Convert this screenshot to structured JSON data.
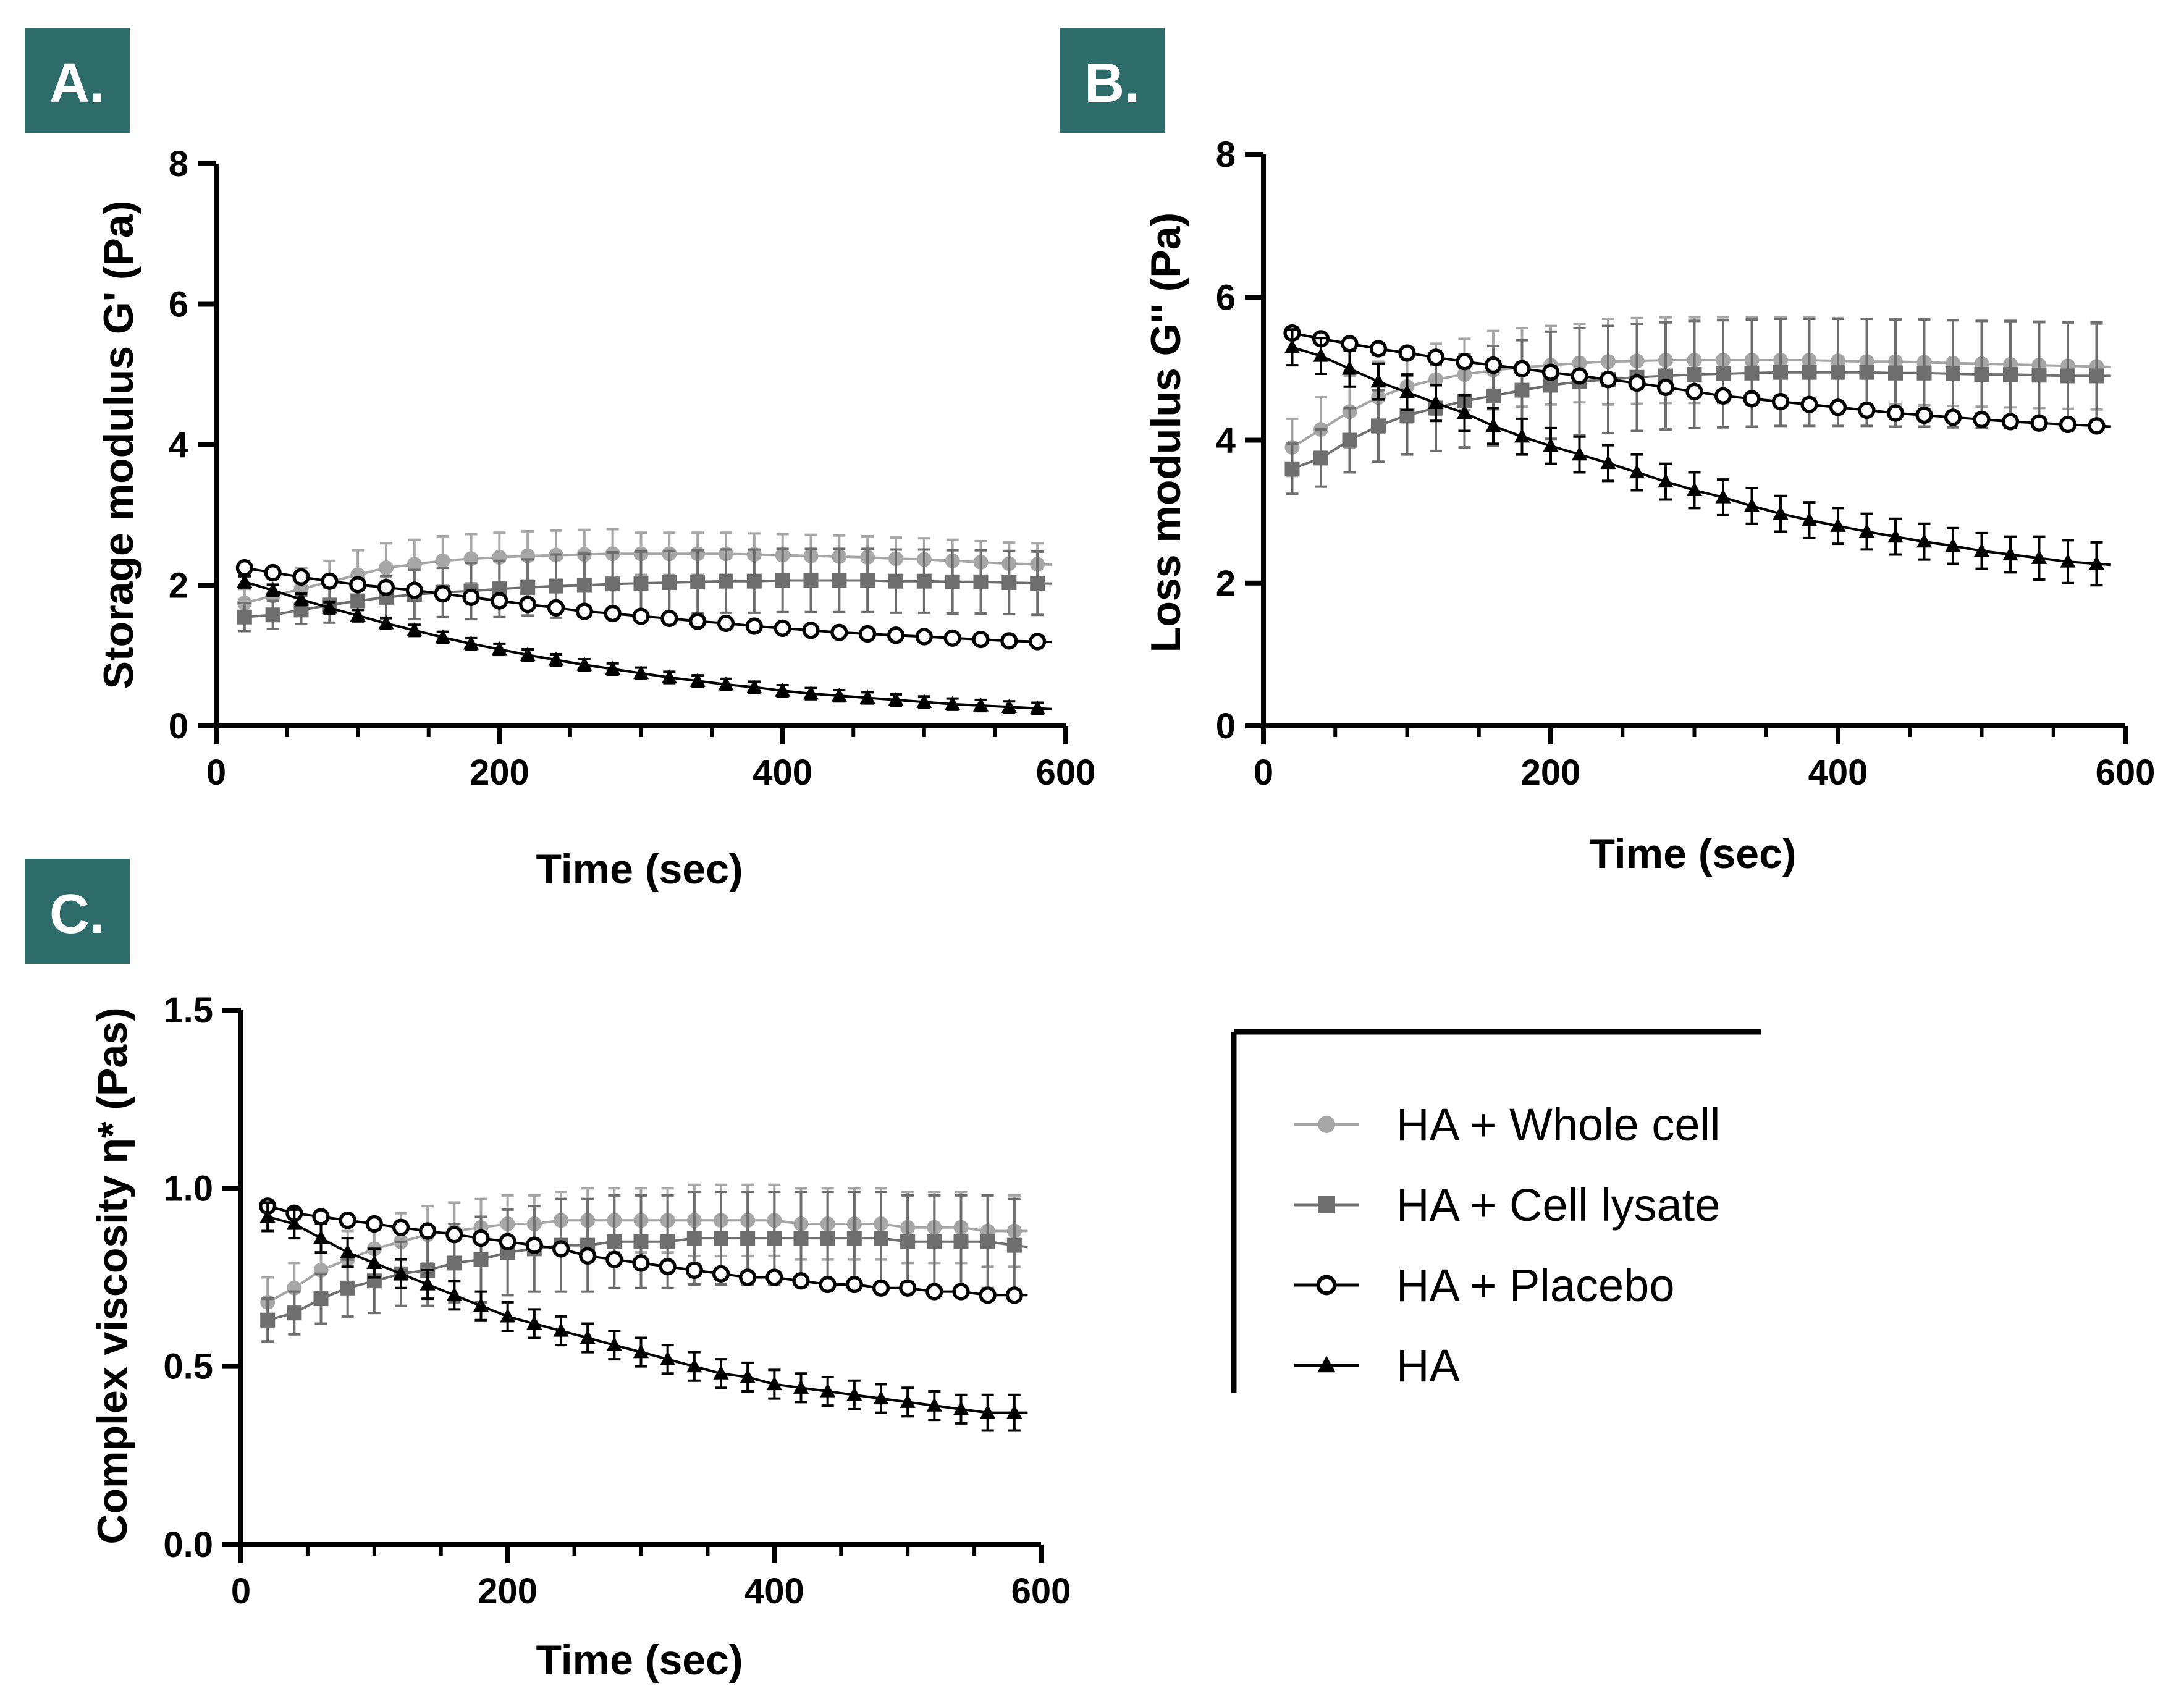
{
  "chart_data": [
    {
      "panel": "A.",
      "type": "line",
      "title": "",
      "xlabel": "Time (sec)",
      "ylabel": "Storage modulus G' (Pa)",
      "xlim": [
        0,
        600
      ],
      "ylim": [
        0,
        8
      ],
      "xticks": [
        "0",
        "200",
        "400",
        "600"
      ],
      "yticks": [
        "0",
        "2",
        "4",
        "6",
        "8"
      ],
      "x": [
        20,
        40,
        60,
        80,
        100,
        120,
        140,
        160,
        180,
        200,
        220,
        240,
        260,
        280,
        300,
        320,
        340,
        360,
        380,
        400,
        420,
        440,
        460,
        480,
        500,
        520,
        540,
        560,
        580
      ],
      "series": [
        {
          "name": "HA + Whole cell",
          "values": [
            1.75,
            1.85,
            1.95,
            2.05,
            2.15,
            2.25,
            2.3,
            2.35,
            2.38,
            2.4,
            2.42,
            2.43,
            2.44,
            2.45,
            2.45,
            2.45,
            2.45,
            2.45,
            2.44,
            2.43,
            2.42,
            2.41,
            2.4,
            2.38,
            2.37,
            2.35,
            2.33,
            2.31,
            2.3
          ],
          "errors": [
            0.2,
            0.25,
            0.3,
            0.3,
            0.35,
            0.35,
            0.35,
            0.35,
            0.35,
            0.35,
            0.35,
            0.35,
            0.35,
            0.35,
            0.3,
            0.3,
            0.3,
            0.3,
            0.3,
            0.3,
            0.3,
            0.3,
            0.3,
            0.3,
            0.3,
            0.3,
            0.3,
            0.3,
            0.3
          ]
        },
        {
          "name": "HA + Cell lysate",
          "values": [
            1.55,
            1.58,
            1.65,
            1.72,
            1.78,
            1.83,
            1.87,
            1.9,
            1.92,
            1.95,
            1.97,
            1.99,
            2.0,
            2.02,
            2.03,
            2.04,
            2.05,
            2.06,
            2.06,
            2.07,
            2.07,
            2.07,
            2.07,
            2.06,
            2.06,
            2.05,
            2.05,
            2.04,
            2.03
          ],
          "errors": [
            0.2,
            0.2,
            0.2,
            0.25,
            0.3,
            0.3,
            0.35,
            0.35,
            0.4,
            0.4,
            0.4,
            0.45,
            0.45,
            0.45,
            0.45,
            0.45,
            0.45,
            0.45,
            0.45,
            0.45,
            0.45,
            0.45,
            0.45,
            0.45,
            0.45,
            0.45,
            0.45,
            0.45,
            0.45
          ]
        },
        {
          "name": "HA + Placebo",
          "values": [
            2.25,
            2.18,
            2.12,
            2.06,
            2.01,
            1.97,
            1.93,
            1.88,
            1.83,
            1.78,
            1.73,
            1.68,
            1.63,
            1.6,
            1.56,
            1.53,
            1.49,
            1.46,
            1.42,
            1.39,
            1.36,
            1.33,
            1.31,
            1.29,
            1.27,
            1.25,
            1.23,
            1.21,
            1.2
          ],
          "errors": [
            0.05,
            0.05,
            0.05,
            0.05,
            0.05,
            0.05,
            0.05,
            0.05,
            0.05,
            0.05,
            0.05,
            0.05,
            0.05,
            0.05,
            0.05,
            0.05,
            0.05,
            0.05,
            0.05,
            0.05,
            0.05,
            0.05,
            0.05,
            0.05,
            0.05,
            0.05,
            0.05,
            0.05,
            0.05
          ]
        },
        {
          "name": "HA",
          "values": [
            2.05,
            1.93,
            1.8,
            1.68,
            1.57,
            1.46,
            1.36,
            1.26,
            1.17,
            1.09,
            1.01,
            0.94,
            0.87,
            0.81,
            0.75,
            0.69,
            0.64,
            0.59,
            0.55,
            0.5,
            0.46,
            0.43,
            0.4,
            0.37,
            0.34,
            0.31,
            0.29,
            0.27,
            0.25
          ],
          "errors": [
            0.08,
            0.08,
            0.08,
            0.08,
            0.08,
            0.08,
            0.08,
            0.08,
            0.08,
            0.08,
            0.08,
            0.08,
            0.08,
            0.08,
            0.08,
            0.08,
            0.08,
            0.08,
            0.08,
            0.08,
            0.08,
            0.08,
            0.08,
            0.08,
            0.08,
            0.08,
            0.08,
            0.08,
            0.08
          ]
        }
      ]
    },
    {
      "panel": "B.",
      "type": "line",
      "title": "",
      "xlabel": "Time (sec)",
      "ylabel": "Loss modulus G'' (Pa)",
      "xlim": [
        0,
        600
      ],
      "ylim": [
        0,
        8
      ],
      "xticks": [
        "0",
        "200",
        "400",
        "600"
      ],
      "yticks": [
        "0",
        "2",
        "4",
        "6",
        "8"
      ],
      "x": [
        20,
        40,
        60,
        80,
        100,
        120,
        140,
        160,
        180,
        200,
        220,
        240,
        260,
        280,
        300,
        320,
        340,
        360,
        380,
        400,
        420,
        440,
        460,
        480,
        500,
        520,
        540,
        560,
        580
      ],
      "series": [
        {
          "name": "HA + Whole cell",
          "values": [
            3.9,
            4.15,
            4.4,
            4.6,
            4.75,
            4.85,
            4.92,
            4.98,
            5.02,
            5.05,
            5.08,
            5.1,
            5.11,
            5.12,
            5.12,
            5.12,
            5.12,
            5.12,
            5.12,
            5.11,
            5.1,
            5.1,
            5.09,
            5.08,
            5.07,
            5.06,
            5.05,
            5.04,
            5.03
          ],
          "errors": [
            0.4,
            0.45,
            0.5,
            0.5,
            0.5,
            0.5,
            0.5,
            0.55,
            0.55,
            0.55,
            0.55,
            0.6,
            0.6,
            0.6,
            0.6,
            0.6,
            0.6,
            0.6,
            0.6,
            0.6,
            0.6,
            0.6,
            0.6,
            0.6,
            0.6,
            0.6,
            0.6,
            0.6,
            0.6
          ]
        },
        {
          "name": "HA + Cell lysate",
          "values": [
            3.6,
            3.75,
            4.0,
            4.2,
            4.35,
            4.45,
            4.55,
            4.62,
            4.7,
            4.77,
            4.82,
            4.85,
            4.88,
            4.9,
            4.92,
            4.93,
            4.94,
            4.95,
            4.95,
            4.95,
            4.95,
            4.94,
            4.94,
            4.93,
            4.92,
            4.92,
            4.91,
            4.9,
            4.9
          ],
          "errors": [
            0.35,
            0.4,
            0.45,
            0.5,
            0.55,
            0.6,
            0.65,
            0.7,
            0.7,
            0.75,
            0.75,
            0.75,
            0.75,
            0.75,
            0.75,
            0.75,
            0.75,
            0.75,
            0.75,
            0.75,
            0.75,
            0.75,
            0.75,
            0.75,
            0.75,
            0.75,
            0.75,
            0.75,
            0.75
          ]
        },
        {
          "name": "HA + Placebo",
          "values": [
            5.5,
            5.42,
            5.35,
            5.28,
            5.22,
            5.16,
            5.1,
            5.05,
            5.0,
            4.95,
            4.9,
            4.85,
            4.8,
            4.74,
            4.68,
            4.62,
            4.58,
            4.54,
            4.5,
            4.46,
            4.42,
            4.38,
            4.35,
            4.32,
            4.29,
            4.26,
            4.24,
            4.22,
            4.2
          ],
          "errors": [
            0.08,
            0.08,
            0.08,
            0.08,
            0.08,
            0.08,
            0.08,
            0.08,
            0.08,
            0.08,
            0.08,
            0.08,
            0.08,
            0.08,
            0.08,
            0.08,
            0.08,
            0.08,
            0.08,
            0.08,
            0.08,
            0.08,
            0.08,
            0.08,
            0.08,
            0.08,
            0.08,
            0.08,
            0.08
          ]
        },
        {
          "name": "HA",
          "values": [
            5.3,
            5.18,
            5.0,
            4.82,
            4.67,
            4.52,
            4.38,
            4.2,
            4.05,
            3.92,
            3.8,
            3.68,
            3.55,
            3.42,
            3.3,
            3.2,
            3.08,
            2.97,
            2.88,
            2.8,
            2.72,
            2.65,
            2.58,
            2.52,
            2.45,
            2.4,
            2.35,
            2.3,
            2.27
          ],
          "errors": [
            0.25,
            0.25,
            0.25,
            0.25,
            0.25,
            0.25,
            0.25,
            0.25,
            0.25,
            0.25,
            0.25,
            0.25,
            0.25,
            0.25,
            0.25,
            0.25,
            0.25,
            0.25,
            0.25,
            0.25,
            0.25,
            0.25,
            0.25,
            0.25,
            0.25,
            0.25,
            0.3,
            0.3,
            0.3
          ]
        }
      ]
    },
    {
      "panel": "C.",
      "type": "line",
      "title": "",
      "xlabel": "Time (sec)",
      "ylabel": "Complex viscosity η* (Pas)",
      "xlim": [
        0,
        600
      ],
      "ylim": [
        0,
        1.5
      ],
      "xticks": [
        "0",
        "200",
        "400",
        "600"
      ],
      "yticks": [
        "0.0",
        "0.5",
        "1.0",
        "1.5"
      ],
      "x": [
        20,
        40,
        60,
        80,
        100,
        120,
        140,
        160,
        180,
        200,
        220,
        240,
        260,
        280,
        300,
        320,
        340,
        360,
        380,
        400,
        420,
        440,
        460,
        480,
        500,
        520,
        540,
        560,
        580
      ],
      "series": [
        {
          "name": "HA + Whole cell",
          "values": [
            0.68,
            0.72,
            0.77,
            0.8,
            0.83,
            0.85,
            0.87,
            0.88,
            0.89,
            0.9,
            0.9,
            0.91,
            0.91,
            0.91,
            0.91,
            0.91,
            0.91,
            0.91,
            0.91,
            0.91,
            0.9,
            0.9,
            0.9,
            0.9,
            0.89,
            0.89,
            0.89,
            0.88,
            0.88
          ],
          "errors": [
            0.07,
            0.07,
            0.08,
            0.08,
            0.08,
            0.08,
            0.08,
            0.08,
            0.08,
            0.08,
            0.08,
            0.08,
            0.09,
            0.09,
            0.09,
            0.09,
            0.1,
            0.1,
            0.1,
            0.1,
            0.1,
            0.1,
            0.1,
            0.1,
            0.1,
            0.1,
            0.1,
            0.1,
            0.1
          ]
        },
        {
          "name": "HA + Cell lysate",
          "values": [
            0.63,
            0.65,
            0.69,
            0.72,
            0.74,
            0.76,
            0.77,
            0.79,
            0.8,
            0.82,
            0.83,
            0.84,
            0.84,
            0.85,
            0.85,
            0.85,
            0.86,
            0.86,
            0.86,
            0.86,
            0.86,
            0.86,
            0.86,
            0.86,
            0.85,
            0.85,
            0.85,
            0.85,
            0.84
          ],
          "errors": [
            0.06,
            0.06,
            0.07,
            0.08,
            0.09,
            0.09,
            0.1,
            0.11,
            0.12,
            0.12,
            0.12,
            0.13,
            0.13,
            0.13,
            0.13,
            0.13,
            0.13,
            0.13,
            0.13,
            0.13,
            0.13,
            0.13,
            0.13,
            0.13,
            0.13,
            0.13,
            0.13,
            0.13,
            0.13
          ]
        },
        {
          "name": "HA + Placebo",
          "values": [
            0.95,
            0.93,
            0.92,
            0.91,
            0.9,
            0.89,
            0.88,
            0.87,
            0.86,
            0.85,
            0.84,
            0.83,
            0.81,
            0.8,
            0.79,
            0.78,
            0.77,
            0.76,
            0.75,
            0.75,
            0.74,
            0.73,
            0.73,
            0.72,
            0.72,
            0.71,
            0.71,
            0.7,
            0.7
          ],
          "errors": [
            0.015,
            0.015,
            0.015,
            0.015,
            0.015,
            0.015,
            0.015,
            0.015,
            0.015,
            0.015,
            0.015,
            0.015,
            0.015,
            0.015,
            0.015,
            0.015,
            0.015,
            0.015,
            0.015,
            0.015,
            0.015,
            0.015,
            0.015,
            0.015,
            0.015,
            0.015,
            0.015,
            0.015,
            0.015
          ]
        },
        {
          "name": "HA",
          "values": [
            0.92,
            0.9,
            0.86,
            0.82,
            0.79,
            0.76,
            0.73,
            0.7,
            0.67,
            0.64,
            0.62,
            0.6,
            0.58,
            0.56,
            0.54,
            0.52,
            0.5,
            0.48,
            0.47,
            0.45,
            0.44,
            0.43,
            0.42,
            0.41,
            0.4,
            0.39,
            0.38,
            0.37,
            0.37
          ],
          "errors": [
            0.04,
            0.04,
            0.04,
            0.04,
            0.04,
            0.04,
            0.04,
            0.04,
            0.04,
            0.04,
            0.04,
            0.04,
            0.04,
            0.04,
            0.04,
            0.04,
            0.04,
            0.04,
            0.04,
            0.04,
            0.04,
            0.04,
            0.04,
            0.04,
            0.04,
            0.04,
            0.04,
            0.05,
            0.05
          ]
        }
      ]
    }
  ],
  "legend": {
    "items": [
      {
        "label": "HA + Whole cell",
        "marker": "filled-circle",
        "color": "#a6a6a6"
      },
      {
        "label": "HA + Cell lysate",
        "marker": "filled-square",
        "color": "#6e6e6e"
      },
      {
        "label": "HA + Placebo",
        "marker": "open-circle",
        "color": "#000000"
      },
      {
        "label": "HA",
        "marker": "filled-triangle",
        "color": "#000000"
      }
    ]
  },
  "colors": {
    "panel_label_bg": "#2e6b6b",
    "whole_cell": "#a6a6a6",
    "cell_lysate": "#6e6e6e",
    "placebo": "#000000",
    "ha": "#000000"
  }
}
